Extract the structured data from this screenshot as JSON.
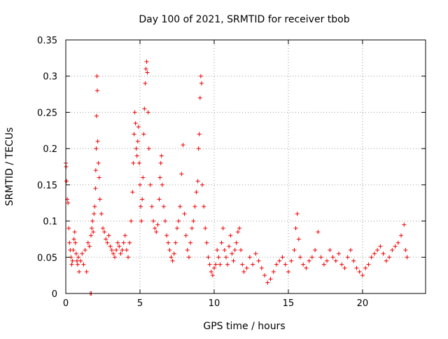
{
  "chart_data": {
    "type": "scatter",
    "title": "Day 100 of 2021, SRMTID for receiver tbob",
    "xlabel": "GPS time / hours",
    "ylabel": "SRMTID / TECUs",
    "xlim": [
      0,
      24.25
    ],
    "ylim": [
      0,
      0.35
    ],
    "x_ticks": [
      0,
      5,
      10,
      15,
      20
    ],
    "y_ticks": [
      0,
      0.05,
      0.1,
      0.15,
      0.2,
      0.25,
      0.3,
      0.35
    ],
    "x_tick_labels": [
      "0",
      "5",
      "10",
      "15",
      "20"
    ],
    "y_tick_labels": [
      "0",
      "0.05",
      "0.1",
      "0.15",
      "0.2",
      "0.25",
      "0.3",
      "0.35"
    ],
    "grid": true,
    "marker": "+",
    "color": "#ee0000",
    "series": [
      {
        "name": "SRMTID",
        "points": [
          [
            0.0,
            0.18
          ],
          [
            0.02,
            0.175
          ],
          [
            0.05,
            0.155
          ],
          [
            0.1,
            0.13
          ],
          [
            0.15,
            0.125
          ],
          [
            0.2,
            0.09
          ],
          [
            0.25,
            0.07
          ],
          [
            0.3,
            0.06
          ],
          [
            0.35,
            0.05
          ],
          [
            0.4,
            0.04
          ],
          [
            0.45,
            0.045
          ],
          [
            0.5,
            0.06
          ],
          [
            0.55,
            0.075
          ],
          [
            0.6,
            0.085
          ],
          [
            0.65,
            0.07
          ],
          [
            0.7,
            0.055
          ],
          [
            0.75,
            0.045
          ],
          [
            0.8,
            0.04
          ],
          [
            0.85,
            0.05
          ],
          [
            0.9,
            0.03
          ],
          [
            1.0,
            0.045
          ],
          [
            1.1,
            0.055
          ],
          [
            1.2,
            0.04
          ],
          [
            1.3,
            0.06
          ],
          [
            1.4,
            0.03
          ],
          [
            1.5,
            0.07
          ],
          [
            1.6,
            0.065
          ],
          [
            1.7,
            0.08
          ],
          [
            1.75,
            0.09
          ],
          [
            1.8,
            0.1
          ],
          [
            1.85,
            0.085
          ],
          [
            1.9,
            0.11
          ],
          [
            1.95,
            0.12
          ],
          [
            2.0,
            0.145
          ],
          [
            2.02,
            0.17
          ],
          [
            2.05,
            0.2
          ],
          [
            2.07,
            0.245
          ],
          [
            2.1,
            0.3
          ],
          [
            2.12,
            0.28
          ],
          [
            2.15,
            0.21
          ],
          [
            2.2,
            0.18
          ],
          [
            2.25,
            0.16
          ],
          [
            2.3,
            0.13
          ],
          [
            2.4,
            0.11
          ],
          [
            2.5,
            0.09
          ],
          [
            2.6,
            0.085
          ],
          [
            2.7,
            0.075
          ],
          [
            2.8,
            0.07
          ],
          [
            2.9,
            0.08
          ],
          [
            3.0,
            0.065
          ],
          [
            3.1,
            0.06
          ],
          [
            3.2,
            0.055
          ],
          [
            3.3,
            0.05
          ],
          [
            3.4,
            0.06
          ],
          [
            3.5,
            0.07
          ],
          [
            3.6,
            0.065
          ],
          [
            3.7,
            0.055
          ],
          [
            3.8,
            0.06
          ],
          [
            3.9,
            0.07
          ],
          [
            4.0,
            0.08
          ],
          [
            4.1,
            0.06
          ],
          [
            4.2,
            0.05
          ],
          [
            4.3,
            0.07
          ],
          [
            4.4,
            0.1
          ],
          [
            4.5,
            0.14
          ],
          [
            4.55,
            0.18
          ],
          [
            4.6,
            0.22
          ],
          [
            4.65,
            0.25
          ],
          [
            4.7,
            0.235
          ],
          [
            4.75,
            0.2
          ],
          [
            4.8,
            0.19
          ],
          [
            4.85,
            0.21
          ],
          [
            4.9,
            0.23
          ],
          [
            4.95,
            0.18
          ],
          [
            5.0,
            0.15
          ],
          [
            5.05,
            0.12
          ],
          [
            5.1,
            0.1
          ],
          [
            5.15,
            0.13
          ],
          [
            5.2,
            0.16
          ],
          [
            5.25,
            0.22
          ],
          [
            5.3,
            0.255
          ],
          [
            5.35,
            0.29
          ],
          [
            5.4,
            0.31
          ],
          [
            5.45,
            0.32
          ],
          [
            5.5,
            0.305
          ],
          [
            5.55,
            0.25
          ],
          [
            5.6,
            0.2
          ],
          [
            5.7,
            0.15
          ],
          [
            5.8,
            0.12
          ],
          [
            5.9,
            0.1
          ],
          [
            6.0,
            0.09
          ],
          [
            6.1,
            0.085
          ],
          [
            6.2,
            0.095
          ],
          [
            6.3,
            0.13
          ],
          [
            6.35,
            0.16
          ],
          [
            6.4,
            0.18
          ],
          [
            6.45,
            0.19
          ],
          [
            6.5,
            0.15
          ],
          [
            6.6,
            0.12
          ],
          [
            6.7,
            0.1
          ],
          [
            6.8,
            0.08
          ],
          [
            6.9,
            0.07
          ],
          [
            7.0,
            0.06
          ],
          [
            7.1,
            0.05
          ],
          [
            7.2,
            0.045
          ],
          [
            7.3,
            0.055
          ],
          [
            7.4,
            0.07
          ],
          [
            7.5,
            0.09
          ],
          [
            7.6,
            0.1
          ],
          [
            7.7,
            0.12
          ],
          [
            7.8,
            0.165
          ],
          [
            7.9,
            0.205
          ],
          [
            8.0,
            0.11
          ],
          [
            8.1,
            0.08
          ],
          [
            8.2,
            0.06
          ],
          [
            8.3,
            0.05
          ],
          [
            8.4,
            0.07
          ],
          [
            8.5,
            0.09
          ],
          [
            8.6,
            0.1
          ],
          [
            8.7,
            0.12
          ],
          [
            8.8,
            0.14
          ],
          [
            8.9,
            0.155
          ],
          [
            8.95,
            0.2
          ],
          [
            9.0,
            0.22
          ],
          [
            9.05,
            0.27
          ],
          [
            9.1,
            0.3
          ],
          [
            9.15,
            0.29
          ],
          [
            9.2,
            0.15
          ],
          [
            9.3,
            0.12
          ],
          [
            9.4,
            0.09
          ],
          [
            9.5,
            0.07
          ],
          [
            9.6,
            0.05
          ],
          [
            9.7,
            0.04
          ],
          [
            9.8,
            0.03
          ],
          [
            9.9,
            0.025
          ],
          [
            10.0,
            0.035
          ],
          [
            10.1,
            0.04
          ],
          [
            10.2,
            0.06
          ],
          [
            10.3,
            0.05
          ],
          [
            10.4,
            0.04
          ],
          [
            10.5,
            0.07
          ],
          [
            10.6,
            0.09
          ],
          [
            10.7,
            0.06
          ],
          [
            10.8,
            0.05
          ],
          [
            10.9,
            0.04
          ],
          [
            11.0,
            0.065
          ],
          [
            11.1,
            0.08
          ],
          [
            11.2,
            0.055
          ],
          [
            11.3,
            0.045
          ],
          [
            11.4,
            0.06
          ],
          [
            11.5,
            0.07
          ],
          [
            11.6,
            0.085
          ],
          [
            11.7,
            0.09
          ],
          [
            11.8,
            0.06
          ],
          [
            11.9,
            0.04
          ],
          [
            12.0,
            0.03
          ],
          [
            12.2,
            0.035
          ],
          [
            12.4,
            0.05
          ],
          [
            12.6,
            0.04
          ],
          [
            12.8,
            0.055
          ],
          [
            13.0,
            0.045
          ],
          [
            13.2,
            0.035
          ],
          [
            13.4,
            0.025
          ],
          [
            13.6,
            0.015
          ],
          [
            13.8,
            0.02
          ],
          [
            14.0,
            0.03
          ],
          [
            14.2,
            0.04
          ],
          [
            14.4,
            0.045
          ],
          [
            14.6,
            0.05
          ],
          [
            14.8,
            0.04
          ],
          [
            15.0,
            0.03
          ],
          [
            15.2,
            0.045
          ],
          [
            15.4,
            0.06
          ],
          [
            15.5,
            0.09
          ],
          [
            15.6,
            0.11
          ],
          [
            15.7,
            0.075
          ],
          [
            15.8,
            0.05
          ],
          [
            16.0,
            0.04
          ],
          [
            16.2,
            0.035
          ],
          [
            16.4,
            0.045
          ],
          [
            16.6,
            0.05
          ],
          [
            16.8,
            0.06
          ],
          [
            17.0,
            0.085
          ],
          [
            17.2,
            0.05
          ],
          [
            17.4,
            0.04
          ],
          [
            17.6,
            0.045
          ],
          [
            17.8,
            0.06
          ],
          [
            18.0,
            0.05
          ],
          [
            18.2,
            0.045
          ],
          [
            18.4,
            0.055
          ],
          [
            18.6,
            0.04
          ],
          [
            18.8,
            0.035
          ],
          [
            19.0,
            0.05
          ],
          [
            19.2,
            0.06
          ],
          [
            19.4,
            0.045
          ],
          [
            19.6,
            0.035
          ],
          [
            19.8,
            0.03
          ],
          [
            20.0,
            0.025
          ],
          [
            20.2,
            0.035
          ],
          [
            20.4,
            0.04
          ],
          [
            20.6,
            0.05
          ],
          [
            20.8,
            0.055
          ],
          [
            21.0,
            0.06
          ],
          [
            21.2,
            0.065
          ],
          [
            21.4,
            0.055
          ],
          [
            21.6,
            0.045
          ],
          [
            21.8,
            0.05
          ],
          [
            22.0,
            0.06
          ],
          [
            22.2,
            0.065
          ],
          [
            22.4,
            0.07
          ],
          [
            22.6,
            0.08
          ],
          [
            22.8,
            0.095
          ],
          [
            22.9,
            0.06
          ],
          [
            23.0,
            0.05
          ],
          [
            1.65,
            0.0
          ],
          [
            1.72,
            0.0
          ]
        ]
      }
    ]
  }
}
